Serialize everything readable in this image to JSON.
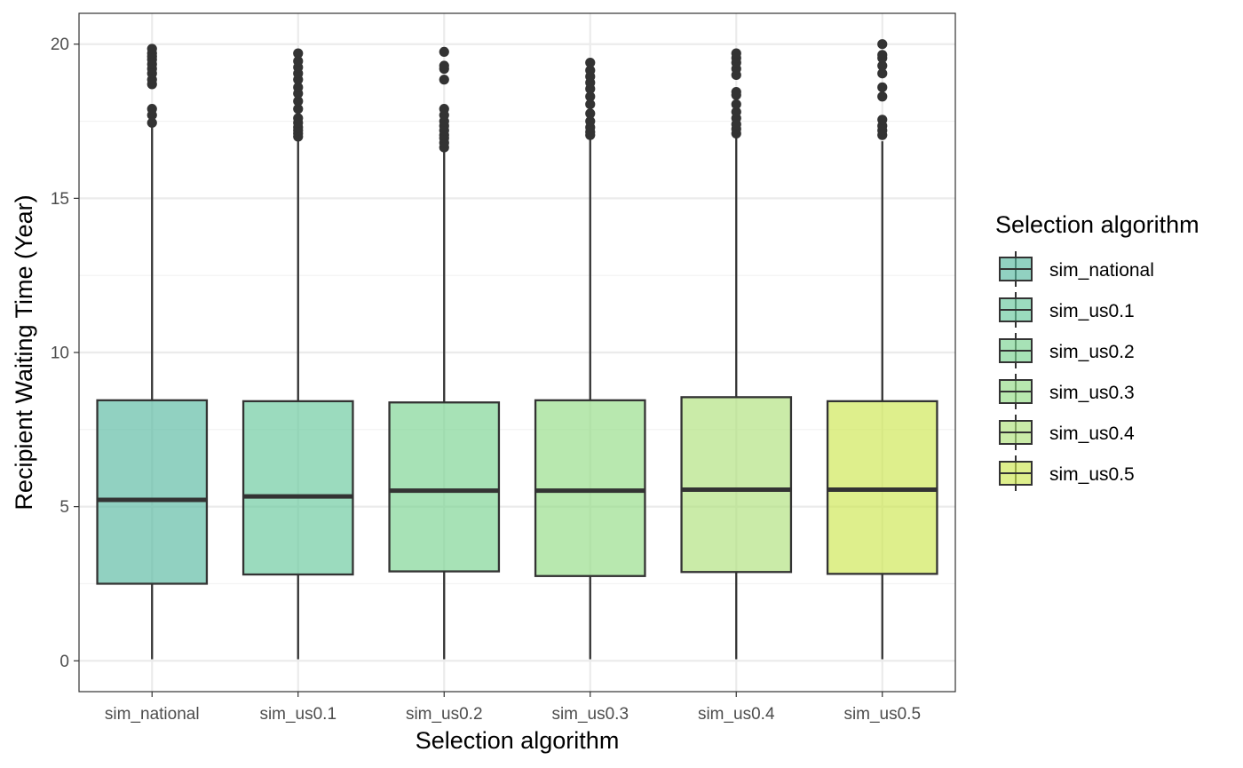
{
  "chart_data": {
    "type": "boxplot",
    "xlabel": "Selection algorithm",
    "ylabel": "Recipient Waiting Time (Year)",
    "ylim": [
      -1.0,
      21.0
    ],
    "yticks": [
      0,
      5,
      10,
      15,
      20
    ],
    "grid": true,
    "legend": {
      "title": "Selection algorithm",
      "position": "right"
    },
    "colors": {
      "fill_opacity": 0.65,
      "box_stroke": "#333333",
      "outlier": "#333333",
      "grid_major": "#ebebeb",
      "grid_minor": "#f2f2f2",
      "panel_border": "#333333"
    },
    "series": [
      {
        "name": "sim_national",
        "fill": "#56B9A0",
        "min": 0.05,
        "q1": 2.5,
        "median": 5.22,
        "q3": 8.45,
        "max": 17.35,
        "outliers": [
          17.45,
          17.7,
          17.9,
          18.7,
          18.85,
          19.05,
          19.2,
          19.35,
          19.5,
          19.6,
          19.7,
          19.85
        ]
      },
      {
        "name": "sim_us0.1",
        "fill": "#66C79B",
        "min": 0.05,
        "q1": 2.8,
        "median": 5.33,
        "q3": 8.42,
        "max": 16.95,
        "outliers": [
          17.0,
          17.1,
          17.2,
          17.3,
          17.45,
          17.6,
          17.9,
          18.15,
          18.4,
          18.6,
          18.85,
          19.05,
          19.25,
          19.45,
          19.7
        ]
      },
      {
        "name": "sim_us0.2",
        "fill": "#78D38F",
        "min": 0.05,
        "q1": 2.9,
        "median": 5.52,
        "q3": 8.38,
        "max": 16.6,
        "outliers": [
          16.65,
          16.8,
          16.95,
          17.05,
          17.2,
          17.35,
          17.5,
          17.7,
          17.9,
          18.85,
          19.2,
          19.3,
          19.75
        ]
      },
      {
        "name": "sim_us0.3",
        "fill": "#92DC84",
        "min": 0.05,
        "q1": 2.75,
        "median": 5.52,
        "q3": 8.45,
        "max": 17.0,
        "outliers": [
          17.05,
          17.15,
          17.3,
          17.5,
          17.75,
          18.05,
          18.3,
          18.55,
          18.75,
          18.95,
          19.15,
          19.4
        ]
      },
      {
        "name": "sim_us0.4",
        "fill": "#AEE07A",
        "min": 0.05,
        "q1": 2.88,
        "median": 5.55,
        "q3": 8.55,
        "max": 17.05,
        "outliers": [
          17.1,
          17.25,
          17.4,
          17.6,
          17.8,
          18.05,
          18.35,
          18.45,
          19.0,
          19.2,
          19.4,
          19.55,
          19.7
        ]
      },
      {
        "name": "sim_us0.5",
        "fill": "#CDE64F",
        "min": 0.05,
        "q1": 2.82,
        "median": 5.55,
        "q3": 8.42,
        "max": 16.85,
        "outliers": [
          17.05,
          17.2,
          17.35,
          17.55,
          18.3,
          18.6,
          19.05,
          19.3,
          19.55,
          19.65,
          20.0
        ]
      }
    ]
  }
}
